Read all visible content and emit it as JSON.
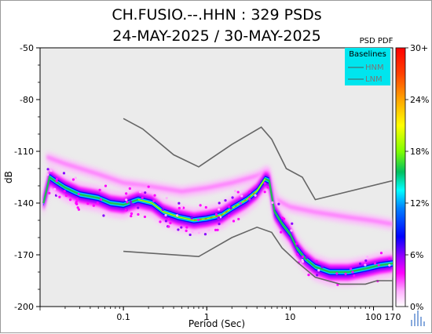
{
  "chart_data": {
    "type": "heatmap",
    "title": "CH.FUSIO.--.HHN : 329 PSDs",
    "subtitle": "24-MAY-2025 / 30-MAY-2025",
    "xlabel": "Period (Sec)",
    "ylabel": "dB",
    "xscale": "log",
    "xlim": [
      0.01,
      170
    ],
    "ylim": [
      -200,
      -50
    ],
    "x_ticks": [
      {
        "value": 0.1,
        "label": "0.1"
      },
      {
        "value": 1,
        "label": "1"
      },
      {
        "value": 10,
        "label": "10"
      },
      {
        "value": 100,
        "label": "100"
      },
      {
        "value": 170,
        "label": "170"
      }
    ],
    "y_ticks": [
      {
        "value": -50,
        "label": "-50"
      },
      {
        "value": -80,
        "label": "-80"
      },
      {
        "value": -110,
        "label": "-110"
      },
      {
        "value": -140,
        "label": "-140"
      },
      {
        "value": -170,
        "label": "-170"
      },
      {
        "value": -200,
        "label": "-200"
      }
    ],
    "colorbar": {
      "title": "PSD PDF",
      "ticks": [
        "30+",
        "24%",
        "18%",
        "12%",
        "6%",
        "0%"
      ],
      "colors": [
        "#ff0000",
        "#ff7f00",
        "#ffd700",
        "#ffff00",
        "#7fff00",
        "#00c060",
        "#00ffff",
        "#0080ff",
        "#0000ff",
        "#8a00ff",
        "#ff00ff",
        "#ffd0ff"
      ]
    },
    "legend": {
      "title": "Baselines",
      "placement": "top-right",
      "background": "#00e5ee",
      "entries": [
        "HNM",
        "LNM"
      ]
    },
    "baselines": {
      "HNM": [
        [
          0.1,
          -91
        ],
        [
          0.17,
          -97
        ],
        [
          0.4,
          -112
        ],
        [
          0.8,
          -119
        ],
        [
          2.0,
          -106
        ],
        [
          4.5,
          -96
        ],
        [
          6.0,
          -103
        ],
        [
          9.0,
          -120
        ],
        [
          14,
          -125
        ],
        [
          20,
          -138
        ],
        [
          170,
          -127
        ]
      ],
      "LNM": [
        [
          0.1,
          -168
        ],
        [
          0.8,
          -171
        ],
        [
          2.0,
          -160
        ],
        [
          4.0,
          -154
        ],
        [
          6.0,
          -157
        ],
        [
          8.0,
          -166
        ],
        [
          12,
          -174
        ],
        [
          20,
          -183
        ],
        [
          40,
          -187
        ],
        [
          80,
          -187
        ],
        [
          110,
          -185
        ],
        [
          170,
          -185
        ]
      ]
    },
    "pdf_mode_curve": [
      [
        0.011,
        -140
      ],
      [
        0.013,
        -125
      ],
      [
        0.016,
        -128
      ],
      [
        0.02,
        -131
      ],
      [
        0.03,
        -135
      ],
      [
        0.05,
        -137
      ],
      [
        0.07,
        -140
      ],
      [
        0.1,
        -141
      ],
      [
        0.15,
        -138
      ],
      [
        0.22,
        -140
      ],
      [
        0.3,
        -145
      ],
      [
        0.45,
        -148
      ],
      [
        0.7,
        -150
      ],
      [
        1.0,
        -149
      ],
      [
        1.5,
        -147
      ],
      [
        2.0,
        -143
      ],
      [
        3.0,
        -138
      ],
      [
        4.0,
        -133
      ],
      [
        5.0,
        -126
      ],
      [
        5.6,
        -127
      ],
      [
        6.5,
        -145
      ],
      [
        8.0,
        -152
      ],
      [
        10,
        -158
      ],
      [
        12,
        -166
      ],
      [
        15,
        -172
      ],
      [
        20,
        -177
      ],
      [
        30,
        -180
      ],
      [
        50,
        -180
      ],
      [
        80,
        -178
      ],
      [
        120,
        -176
      ],
      [
        170,
        -175
      ]
    ],
    "upper_scatter_curve": [
      [
        0.012,
        -113
      ],
      [
        0.02,
        -117
      ],
      [
        0.05,
        -123
      ],
      [
        0.1,
        -128
      ],
      [
        0.2,
        -130
      ],
      [
        0.5,
        -133
      ],
      [
        1.0,
        -131
      ],
      [
        2.0,
        -128
      ],
      [
        4.0,
        -124
      ],
      [
        5.5,
        -121
      ],
      [
        7.0,
        -138
      ],
      [
        10,
        -142
      ],
      [
        20,
        -145
      ],
      [
        50,
        -148
      ],
      [
        100,
        -150
      ],
      [
        170,
        -152
      ]
    ]
  }
}
